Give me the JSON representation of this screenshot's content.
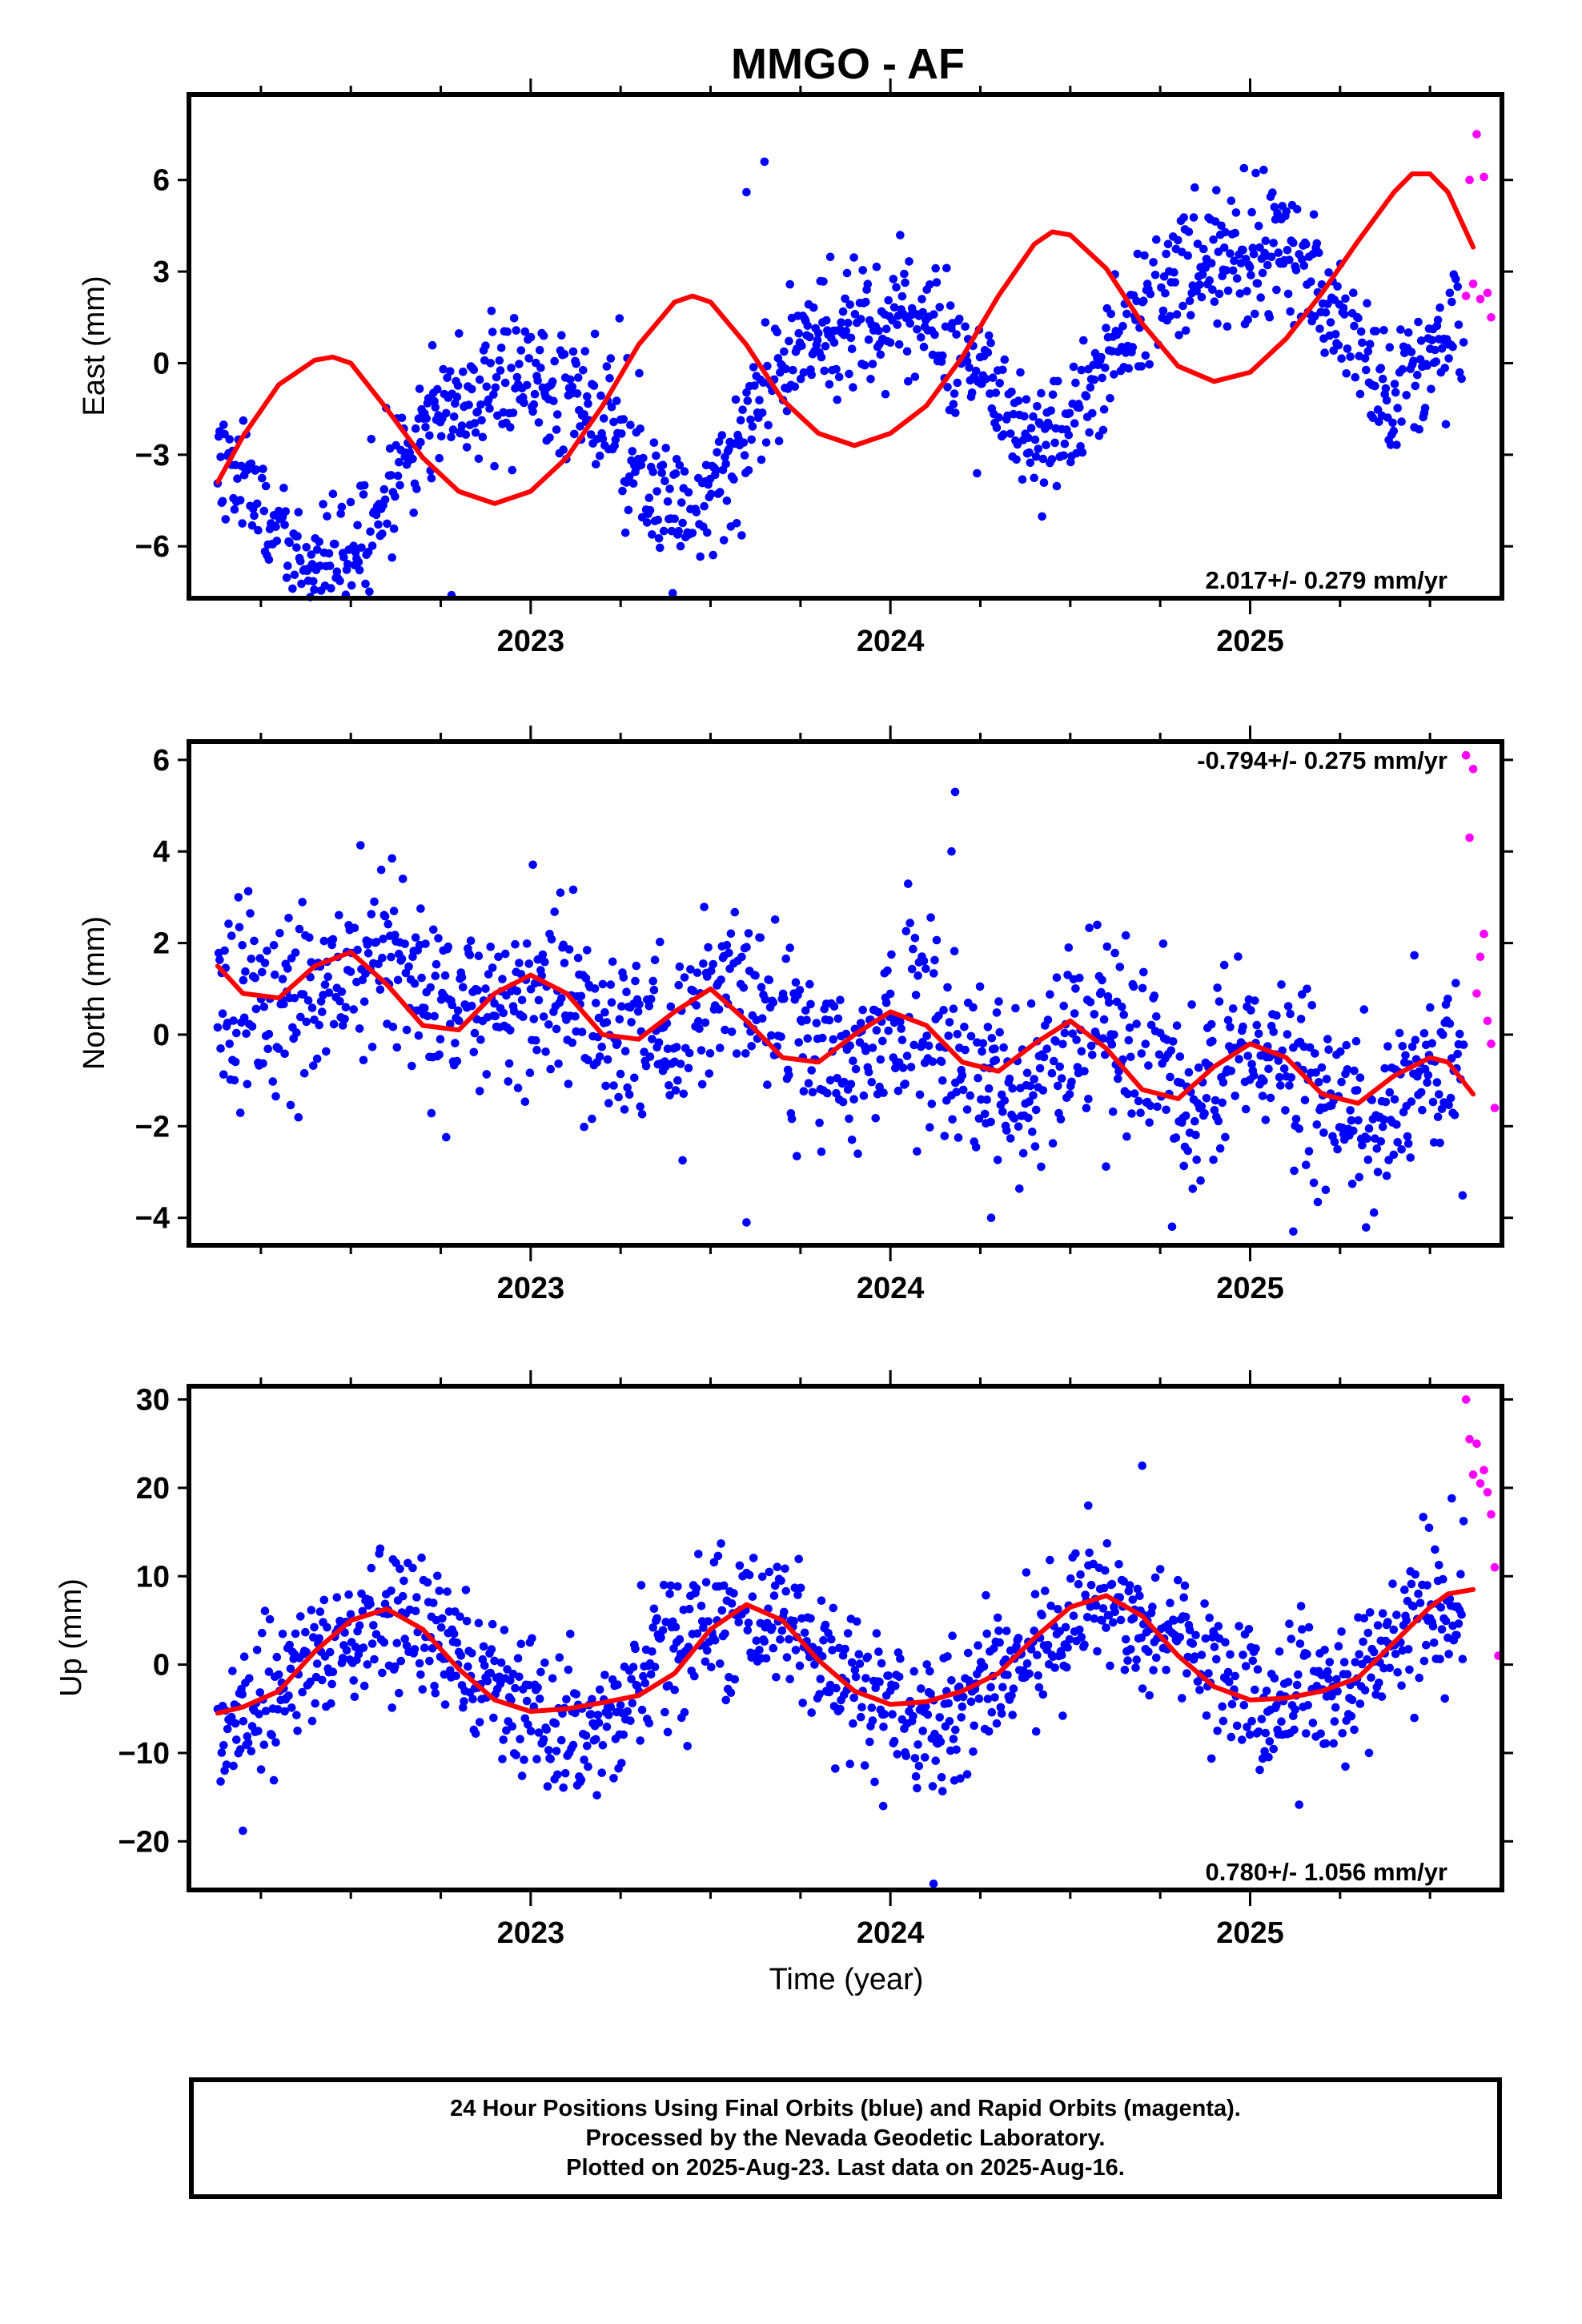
{
  "title": "MMGO - AF",
  "xlabel": "Time (year)",
  "x_ticks": [
    "2023",
    "2024",
    "2025"
  ],
  "colors": {
    "final": "#0000ff",
    "rapid": "#ff00ff",
    "model": "#ff0000",
    "axes": "#000000"
  },
  "footer": {
    "line1": "24 Hour Positions Using Final Orbits (blue) and Rapid Orbits (magenta).",
    "line2": "Processed by the Nevada Geodetic Laboratory.",
    "line3": "Plotted on 2025-Aug-23. Last data on 2025-Aug-16."
  },
  "chart_data": [
    {
      "type": "scatter",
      "name": "east",
      "ylabel": "East (mm)",
      "rate_label": "2.017+/- 0.279 mm/yr",
      "rate_position": "bottom-right",
      "xlim": [
        2022.05,
        2025.7
      ],
      "ylim": [
        -7.7,
        8.8
      ],
      "y_ticks": [
        -6,
        -3,
        0,
        3,
        6
      ],
      "y_tick_labels": [
        "−6",
        "−3",
        "0",
        "3",
        "6"
      ],
      "x_minor_ticks": [
        2022.25,
        2022.5,
        2022.75,
        2023.25,
        2023.5,
        2023.75,
        2024.25,
        2024.5,
        2024.75,
        2025.25,
        2025.5
      ],
      "model": {
        "x": [
          2022.13,
          2022.2,
          2022.3,
          2022.4,
          2022.45,
          2022.5,
          2022.6,
          2022.7,
          2022.8,
          2022.9,
          2023.0,
          2023.1,
          2023.2,
          2023.3,
          2023.4,
          2023.45,
          2023.5,
          2023.6,
          2023.7,
          2023.8,
          2023.9,
          2024.0,
          2024.1,
          2024.2,
          2024.3,
          2024.4,
          2024.45,
          2024.5,
          2024.6,
          2024.7,
          2024.8,
          2024.9,
          2025.0,
          2025.1,
          2025.2,
          2025.3,
          2025.4,
          2025.45,
          2025.5,
          2025.55,
          2025.62
        ],
        "y": [
          -3.9,
          -2.4,
          -0.7,
          0.1,
          0.2,
          0.0,
          -1.5,
          -3.1,
          -4.2,
          -4.6,
          -4.2,
          -3.1,
          -1.4,
          0.6,
          2.0,
          2.2,
          2.0,
          0.6,
          -1.2,
          -2.3,
          -2.7,
          -2.3,
          -1.4,
          0.2,
          2.2,
          3.9,
          4.3,
          4.2,
          3.1,
          1.3,
          -0.1,
          -0.6,
          -0.3,
          0.8,
          2.3,
          4.0,
          5.6,
          6.2,
          6.2,
          5.6,
          3.8
        ]
      },
      "sinusoid": {
        "base": -4.2,
        "trend": 2.017,
        "t0": 2022.13,
        "amp1": 2.6,
        "phase1": 2022.68,
        "amp2": 0.6,
        "phase2": 2022.55,
        "noise": 1.1,
        "seed": 11
      },
      "rapid": {
        "x": [
          2025.6,
          2025.61,
          2025.62,
          2025.63,
          2025.64,
          2025.65,
          2025.66,
          2025.67
        ],
        "y": [
          2.2,
          6.0,
          2.6,
          7.5,
          2.1,
          6.1,
          2.3,
          1.5
        ]
      },
      "outliers": {
        "x": [
          2023.6,
          2023.65,
          2022.78
        ],
        "y": [
          5.6,
          6.6,
          -7.6
        ]
      }
    },
    {
      "type": "scatter",
      "name": "north",
      "ylabel": "North (mm)",
      "rate_label": "-0.794+/- 0.275 mm/yr",
      "rate_position": "top-right",
      "xlim": [
        2022.05,
        2025.7
      ],
      "ylim": [
        -4.6,
        6.4
      ],
      "y_ticks": [
        -4,
        -2,
        0,
        2,
        4,
        6
      ],
      "y_tick_labels": [
        "−4",
        "−2",
        "0",
        "2",
        "4",
        "6"
      ],
      "x_minor_ticks": [
        2022.25,
        2022.5,
        2022.75,
        2023.25,
        2023.5,
        2023.75,
        2024.25,
        2024.5,
        2024.75,
        2025.25,
        2025.5
      ],
      "model": {
        "x": [
          2022.13,
          2022.2,
          2022.3,
          2022.4,
          2022.5,
          2022.6,
          2022.7,
          2022.8,
          2022.9,
          2023.0,
          2023.1,
          2023.2,
          2023.3,
          2023.4,
          2023.5,
          2023.6,
          2023.7,
          2023.8,
          2023.9,
          2024.0,
          2024.1,
          2024.2,
          2024.3,
          2024.4,
          2024.5,
          2024.6,
          2024.7,
          2024.8,
          2024.9,
          2025.0,
          2025.1,
          2025.2,
          2025.3,
          2025.4,
          2025.5,
          2025.55,
          2025.62
        ],
        "y": [
          1.5,
          0.9,
          0.8,
          1.5,
          1.8,
          1.1,
          0.2,
          0.1,
          0.9,
          1.3,
          0.9,
          0.0,
          -0.1,
          0.5,
          1.0,
          0.3,
          -0.5,
          -0.6,
          0.0,
          0.5,
          0.2,
          -0.6,
          -0.8,
          -0.2,
          0.3,
          -0.3,
          -1.2,
          -1.4,
          -0.7,
          -0.2,
          -0.5,
          -1.3,
          -1.5,
          -0.9,
          -0.5,
          -0.6,
          -1.3
        ]
      },
      "sinusoid": {
        "base": 1.3,
        "trend": -0.794,
        "t0": 2022.13,
        "amp1": 0.3,
        "phase1": 2022.45,
        "amp2": 0.55,
        "phase2": 2022.45,
        "noise": 1.0,
        "seed": 23
      },
      "rapid": {
        "x": [
          2025.6,
          2025.61,
          2025.62,
          2025.63,
          2025.64,
          2025.65,
          2025.66,
          2025.67,
          2025.68
        ],
        "y": [
          6.1,
          4.3,
          5.8,
          0.9,
          1.7,
          2.2,
          0.3,
          -0.2,
          -1.6
        ]
      },
      "outliers": {
        "x": [
          2024.18,
          2024.17,
          2023.6,
          2024.28,
          2025.12
        ],
        "y": [
          5.3,
          4.0,
          -4.1,
          -4.0,
          -4.3
        ]
      }
    },
    {
      "type": "scatter",
      "name": "up",
      "ylabel": "Up (mm)",
      "rate_label": "0.780+/- 1.056 mm/yr",
      "rate_position": "bottom-right",
      "xlim": [
        2022.05,
        2025.7
      ],
      "ylim": [
        -25.5,
        31.5
      ],
      "y_ticks": [
        -20,
        -10,
        0,
        10,
        20,
        30
      ],
      "y_tick_labels": [
        "−20",
        "−10",
        "0",
        "10",
        "20",
        "30"
      ],
      "x_minor_ticks": [
        2022.25,
        2022.5,
        2022.75,
        2023.25,
        2023.5,
        2023.75,
        2024.25,
        2024.5,
        2024.75,
        2025.25,
        2025.5
      ],
      "model": {
        "x": [
          2022.13,
          2022.2,
          2022.3,
          2022.4,
          2022.5,
          2022.6,
          2022.7,
          2022.8,
          2022.9,
          2023.0,
          2023.1,
          2023.2,
          2023.3,
          2023.4,
          2023.5,
          2023.6,
          2023.7,
          2023.8,
          2023.9,
          2024.0,
          2024.1,
          2024.2,
          2024.3,
          2024.4,
          2024.5,
          2024.6,
          2024.7,
          2024.8,
          2024.9,
          2025.0,
          2025.1,
          2025.2,
          2025.3,
          2025.4,
          2025.5,
          2025.55,
          2025.62
        ],
        "y": [
          -5.5,
          -4.8,
          -3.0,
          1.5,
          5.0,
          6.3,
          4.0,
          -0.5,
          -4.0,
          -5.3,
          -5.0,
          -4.3,
          -3.5,
          -1.0,
          4.0,
          6.8,
          5.0,
          0.5,
          -3.0,
          -4.5,
          -4.2,
          -3.0,
          -1.0,
          3.0,
          6.5,
          7.8,
          5.5,
          1.0,
          -2.5,
          -4.0,
          -3.8,
          -3.0,
          -1.5,
          2.5,
          6.5,
          8.0,
          8.5
        ]
      },
      "sinusoid": {
        "base": -1.5,
        "trend": 0.78,
        "t0": 2022.13,
        "amp1": 5.8,
        "phase1": 2022.35,
        "amp2": 0.0,
        "phase2": 2022.35,
        "noise": 4.0,
        "seed": 37
      },
      "rapid": {
        "x": [
          2025.6,
          2025.61,
          2025.62,
          2025.63,
          2025.64,
          2025.65,
          2025.66,
          2025.67,
          2025.68,
          2025.69
        ],
        "y": [
          30.0,
          25.5,
          21.5,
          25.0,
          20.5,
          22.0,
          19.5,
          17.0,
          11.0,
          1.0
        ]
      },
      "outliers": {
        "x": [
          2022.2,
          2024.12,
          2023.98,
          2024.55,
          2024.7
        ],
        "y": [
          -18.8,
          -24.8,
          -16.0,
          18.0,
          22.5
        ]
      }
    }
  ]
}
